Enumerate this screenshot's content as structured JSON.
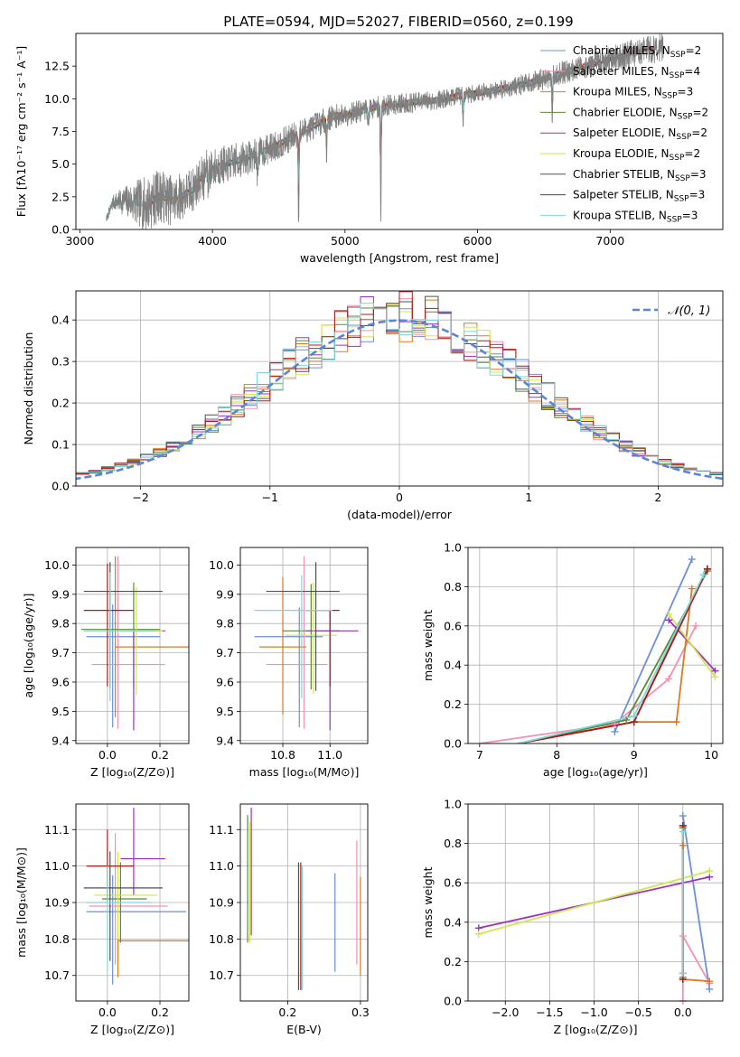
{
  "figure": {
    "title": "PLATE=0594, MJD=52027, FIBERID=0560, z=0.199"
  },
  "models": [
    {
      "name": "Chabrier MILES",
      "nssp": "2",
      "color": "#6c8fdb"
    },
    {
      "name": "Salpeter MILES",
      "nssp": "4",
      "color": "#f291b0"
    },
    {
      "name": "Kroupa MILES",
      "nssp": "3",
      "color": "#e0781e"
    },
    {
      "name": "Chabrier ELODIE",
      "nssp": "2",
      "color": "#5a8a3a"
    },
    {
      "name": "Salpeter ELODIE",
      "nssp": "2",
      "color": "#9b30c0"
    },
    {
      "name": "Kroupa ELODIE",
      "nssp": "2",
      "color": "#cfe84a"
    },
    {
      "name": "Chabrier STELIB",
      "nssp": "3",
      "color": "#505050"
    },
    {
      "name": "Salpeter STELIB",
      "nssp": "3",
      "color": "#b01818"
    },
    {
      "name": "Kroupa STELIB",
      "nssp": "3",
      "color": "#7fd8d8"
    }
  ],
  "chart_data": [
    {
      "id": "spectrum",
      "type": "line",
      "xlabel": "wavelength [Angstrom, rest frame]",
      "ylabel": "Flux [fλ10⁻¹⁷ erg cm⁻² s⁻¹ A⁻¹]",
      "xlim": [
        2970,
        7850
      ],
      "ylim": [
        0,
        15
      ],
      "xticks": [
        3000,
        4000,
        5000,
        6000,
        7000
      ],
      "yticks": [
        0.0,
        2.5,
        5.0,
        7.5,
        10.0,
        12.5
      ],
      "data_color": "#808080",
      "data_range": [
        3200,
        7400
      ],
      "data_continuum": [
        [
          3200,
          0.8
        ],
        [
          3250,
          2.1
        ],
        [
          3350,
          2.2
        ],
        [
          3500,
          1.9
        ],
        [
          3600,
          2.6
        ],
        [
          3700,
          2.2
        ],
        [
          3850,
          3.0
        ],
        [
          3950,
          4.5
        ],
        [
          4100,
          5.0
        ],
        [
          4300,
          5.6
        ],
        [
          4500,
          6.5
        ],
        [
          4700,
          7.6
        ],
        [
          4900,
          8.6
        ],
        [
          5100,
          9.0
        ],
        [
          5300,
          9.5
        ],
        [
          5500,
          9.7
        ],
        [
          5700,
          9.9
        ],
        [
          5900,
          10.3
        ],
        [
          6100,
          10.6
        ],
        [
          6300,
          11.0
        ],
        [
          6500,
          11.5
        ],
        [
          6700,
          12.2
        ],
        [
          6900,
          12.7
        ],
        [
          7100,
          13.3
        ],
        [
          7300,
          13.8
        ],
        [
          7400,
          14.0
        ]
      ],
      "data_dips": [
        [
          3934,
          1.2
        ],
        [
          3968,
          1.5
        ],
        [
          4102,
          1.0
        ],
        [
          4340,
          2.0
        ],
        [
          4650,
          7.0
        ],
        [
          4861,
          3.0
        ],
        [
          5175,
          1.6
        ],
        [
          5270,
          9.0
        ],
        [
          5890,
          2.2
        ],
        [
          6563,
          4.0
        ]
      ],
      "data_noise": [
        [
          3200,
          0.25
        ],
        [
          3500,
          2.2
        ],
        [
          3950,
          1.6
        ],
        [
          4400,
          1.2
        ],
        [
          5000,
          0.9
        ],
        [
          6000,
          0.7
        ],
        [
          7000,
          1.0
        ],
        [
          7400,
          1.2
        ]
      ],
      "model_ranges": [
        [
          3200,
          6780
        ],
        [
          3520,
          7330
        ],
        [
          3540,
          6780
        ],
        [
          3540,
          6780
        ],
        [
          3540,
          6780
        ],
        [
          3540,
          6780
        ],
        [
          3540,
          7330
        ],
        [
          3540,
          7330
        ],
        [
          3200,
          6780
        ]
      ],
      "legend": "top-right"
    },
    {
      "id": "residual-hist",
      "type": "histogram",
      "xlabel": "(data-model)/error",
      "ylabel": "Normed distribution",
      "xlim": [
        -2.5,
        2.5
      ],
      "ylim": [
        0,
        0.47
      ],
      "xticks": [
        -2,
        -1,
        0,
        1,
        2
      ],
      "yticks": [
        0.0,
        0.1,
        0.2,
        0.3,
        0.4
      ],
      "grid": true,
      "bin_width": 0.1,
      "gaussian_label": "𝒩(0, 1)",
      "gaussian_color": "#5b86d6",
      "legend": "top-right"
    },
    {
      "id": "age-vs-Z",
      "type": "errorbar",
      "xlabel": "Z [log₁₀(Z/Z⊙)]",
      "ylabel": "age  [log₁₀(age/yr)]",
      "xlim": [
        -0.12,
        0.31
      ],
      "ylim": [
        9.39,
        10.06
      ],
      "xticks": [
        0.0,
        0.2
      ],
      "yticks": [
        9.4,
        9.5,
        9.6,
        9.7,
        9.8,
        9.9,
        10.0
      ],
      "grid": true,
      "points": [
        {
          "x": 0.02,
          "xerr": [
            0.1,
            0.18
          ],
          "y": 9.755,
          "yerr": [
            0.31,
            0.11
          ]
        },
        {
          "x": 0.04,
          "xerr": [
            0.1,
            0.18
          ],
          "y": 9.66,
          "yerr": [
            0.22,
            0.37
          ]
        },
        {
          "x": 0.03,
          "xerr": [
            0.0,
            0.3
          ],
          "y": 9.72,
          "yerr": [
            0.24,
            0.31
          ]
        },
        {
          "x": 0.1,
          "xerr": [
            0.2,
            0.1
          ],
          "y": 9.78,
          "yerr": [
            0.2,
            0.16
          ]
        },
        {
          "x": 0.1,
          "xerr": [
            0.0,
            0.12
          ],
          "y": 9.775,
          "yerr": [
            0.34,
            0.0
          ]
        },
        {
          "x": 0.11,
          "xerr": [
            0.1,
            0.1
          ],
          "y": 9.775,
          "yerr": [
            0.22,
            0.15
          ]
        },
        {
          "x": 0.01,
          "xerr": [
            0.1,
            0.2
          ],
          "y": 9.91,
          "yerr": [
            0.33,
            0.1
          ]
        },
        {
          "x": 0.0,
          "xerr": [
            0.09,
            0.1
          ],
          "y": 9.845,
          "yerr": [
            0.26,
            0.16
          ]
        },
        {
          "x": 0.01,
          "xerr": [
            0.1,
            0.17
          ],
          "y": 9.775,
          "yerr": [
            0.24,
            0.2
          ]
        }
      ]
    },
    {
      "id": "age-vs-mass",
      "type": "errorbar",
      "xlabel": "mass [log₁₀(M/M⊙)]",
      "ylabel": "",
      "xlim": [
        10.62,
        11.16
      ],
      "ylim": [
        9.39,
        10.06
      ],
      "xticks": [
        10.8,
        11.0
      ],
      "yticks": [
        9.4,
        9.5,
        9.6,
        9.7,
        9.8,
        9.9,
        10.0
      ],
      "grid": true,
      "points": [
        {
          "x": 10.87,
          "xerr": [
            0.19,
            0.1
          ],
          "y": 9.755,
          "yerr": [
            0.31,
            0.1
          ]
        },
        {
          "x": 10.89,
          "xerr": [
            0.16,
            0.1
          ],
          "y": 9.66,
          "yerr": [
            0.22,
            0.37
          ]
        },
        {
          "x": 10.8,
          "xerr": [
            0.1,
            0.1
          ],
          "y": 9.72,
          "yerr": [
            0.23,
            0.24
          ]
        },
        {
          "x": 10.92,
          "xerr": [
            0.12,
            0.12
          ],
          "y": 9.775,
          "yerr": [
            0.2,
            0.16
          ]
        },
        {
          "x": 11.0,
          "xerr": [
            0.1,
            0.12
          ],
          "y": 9.775,
          "yerr": [
            0.34,
            0.07
          ]
        },
        {
          "x": 10.93,
          "xerr": [
            0.12,
            0.1
          ],
          "y": 9.76,
          "yerr": [
            0.2,
            0.18
          ]
        },
        {
          "x": 10.94,
          "xerr": [
            0.21,
            0.1
          ],
          "y": 9.91,
          "yerr": [
            0.34,
            0.1
          ]
        },
        {
          "x": 11.0,
          "xerr": [
            0.1,
            0.04
          ],
          "y": 9.845,
          "yerr": [
            0.26,
            0.0
          ]
        },
        {
          "x": 10.88,
          "xerr": [
            0.2,
            0.13
          ],
          "y": 9.845,
          "yerr": [
            0.3,
            0.12
          ]
        }
      ]
    },
    {
      "id": "weight-vs-age",
      "type": "line",
      "xlabel": "age  [log₁₀(age/yr)]",
      "ylabel": "mass weight",
      "xlim": [
        6.85,
        10.15
      ],
      "ylim": [
        0,
        1
      ],
      "xticks": [
        7,
        8,
        9,
        10
      ],
      "yticks": [
        0.0,
        0.2,
        0.4,
        0.6,
        0.8,
        1.0
      ],
      "grid": true,
      "series": [
        {
          "x": [
            8.75,
            9.75
          ],
          "y": [
            0.06,
            0.94
          ],
          "marked": [
            true,
            true
          ]
        },
        {
          "x": [
            7.0,
            8.75,
            9.45,
            9.8
          ],
          "y": [
            0.0,
            0.1,
            0.33,
            0.6
          ],
          "marked": [
            false,
            true,
            true,
            true
          ]
        },
        {
          "x": [
            7.5,
            9.0,
            9.55,
            9.75
          ],
          "y": [
            0.0,
            0.11,
            0.11,
            0.79
          ],
          "marked": [
            false,
            true,
            true,
            true
          ]
        },
        {
          "x": [
            7.5,
            8.9,
            9.95
          ],
          "y": [
            0.0,
            0.12,
            0.88
          ],
          "marked": [
            false,
            true,
            true
          ]
        },
        {
          "x": [
            9.45,
            10.05
          ],
          "y": [
            0.63,
            0.37
          ],
          "marked": [
            true,
            true
          ]
        },
        {
          "x": [
            9.45,
            10.05
          ],
          "y": [
            0.66,
            0.34
          ],
          "marked": [
            true,
            true
          ]
        },
        {
          "x": [
            7.5,
            9.0,
            9.95
          ],
          "y": [
            0.0,
            0.11,
            0.89
          ],
          "marked": [
            false,
            true,
            true
          ]
        },
        {
          "x": [
            7.5,
            9.0,
            9.95
          ],
          "y": [
            0.0,
            0.11,
            0.89
          ],
          "marked": [
            false,
            true,
            true
          ]
        },
        {
          "x": [
            7.5,
            9.0,
            9.9
          ],
          "y": [
            0.0,
            0.14,
            0.86
          ],
          "marked": [
            false,
            true,
            true
          ]
        }
      ]
    },
    {
      "id": "mass-vs-Z",
      "type": "errorbar",
      "xlabel": "Z [log₁₀(Z/Z⊙)]",
      "ylabel": "mass [log₁₀(M/M⊙)]",
      "xlim": [
        -0.12,
        0.31
      ],
      "ylim": [
        10.63,
        11.17
      ],
      "xticks": [
        0.0,
        0.2
      ],
      "yticks": [
        10.7,
        10.8,
        10.9,
        11.0,
        11.1
      ],
      "grid": true,
      "points": [
        {
          "x": 0.02,
          "xerr": [
            0.1,
            0.28
          ],
          "y": 10.875,
          "yerr": [
            0.2,
            0.1
          ]
        },
        {
          "x": 0.03,
          "xerr": [
            0.1,
            0.2
          ],
          "y": 10.89,
          "yerr": [
            0.16,
            0.2
          ]
        },
        {
          "x": 0.04,
          "xerr": [
            0.0,
            0.27
          ],
          "y": 10.795,
          "yerr": [
            0.1,
            0.17
          ]
        },
        {
          "x": 0.05,
          "xerr": [
            0.07,
            0.1
          ],
          "y": 10.91,
          "yerr": [
            0.12,
            0.1
          ]
        },
        {
          "x": 0.1,
          "xerr": [
            0.05,
            0.12
          ],
          "y": 11.02,
          "yerr": [
            0.1,
            0.14
          ]
        },
        {
          "x": 0.04,
          "xerr": [
            0.09,
            0.15
          ],
          "y": 10.92,
          "yerr": [
            0.12,
            0.12
          ]
        },
        {
          "x": 0.01,
          "xerr": [
            0.1,
            0.2
          ],
          "y": 10.94,
          "yerr": [
            0.2,
            0.1
          ]
        },
        {
          "x": 0.0,
          "xerr": [
            0.08,
            0.1
          ],
          "y": 11.0,
          "yerr": [
            0.1,
            0.1
          ]
        },
        {
          "x": 0.0,
          "xerr": [
            0.08,
            0.17
          ],
          "y": 10.9,
          "yerr": [
            0.19,
            0.1
          ]
        }
      ]
    },
    {
      "id": "mass-vs-EBV",
      "type": "errorbar",
      "xlabel": "E(B-V)",
      "ylabel": "",
      "xlim": [
        0.135,
        0.31
      ],
      "ylim": [
        10.63,
        11.17
      ],
      "xticks": [
        0.2,
        0.3
      ],
      "yticks": [
        10.7,
        10.8,
        10.9,
        11.0,
        11.1
      ],
      "grid": true,
      "points": [
        {
          "x": 0.265,
          "y": 10.84,
          "yerr": [
            0.13,
            0.14
          ]
        },
        {
          "x": 0.295,
          "y": 10.9,
          "yerr": [
            0.17,
            0.17
          ]
        },
        {
          "x": 0.3,
          "y": 10.83,
          "yerr": [
            0.13,
            0.14
          ]
        },
        {
          "x": 0.145,
          "y": 10.98,
          "yerr": [
            0.19,
            0.16
          ]
        },
        {
          "x": 0.15,
          "y": 10.98,
          "yerr": [
            0.17,
            0.18
          ]
        },
        {
          "x": 0.148,
          "y": 10.96,
          "yerr": [
            0.17,
            0.16
          ]
        },
        {
          "x": 0.215,
          "y": 10.84,
          "yerr": [
            0.18,
            0.17
          ]
        },
        {
          "x": 0.218,
          "y": 10.86,
          "yerr": [
            0.2,
            0.15
          ]
        },
        {
          "x": 0.22,
          "y": 10.82,
          "yerr": [
            0.16,
            0.18
          ]
        }
      ]
    },
    {
      "id": "weight-vs-Z",
      "type": "line",
      "xlabel": "Z [log₁₀(Z/Z⊙)]",
      "ylabel": "mass weight",
      "xlim": [
        -2.42,
        0.45
      ],
      "ylim": [
        0,
        1
      ],
      "xticks": [
        -2.0,
        -1.5,
        -1.0,
        -0.5,
        0.0
      ],
      "yticks": [
        0.0,
        0.2,
        0.4,
        0.6,
        0.8,
        1.0
      ],
      "grid": true,
      "series": [
        {
          "x": [
            0.0,
            0.3
          ],
          "y": [
            0.94,
            0.06
          ],
          "marked": [
            true,
            true
          ]
        },
        {
          "x": [
            0.0,
            0.0,
            0.3
          ],
          "y": [
            0.0,
            0.33,
            0.09
          ],
          "marked": [
            true,
            true,
            true
          ]
        },
        {
          "x": [
            0.0,
            0.0,
            0.3
          ],
          "y": [
            0.79,
            0.11,
            0.1
          ],
          "marked": [
            true,
            true,
            true
          ]
        },
        {
          "x": [
            0.0,
            0.0
          ],
          "y": [
            0.88,
            0.12
          ],
          "marked": [
            true,
            true
          ]
        },
        {
          "x": [
            -2.3,
            0.3
          ],
          "y": [
            0.37,
            0.63
          ],
          "marked": [
            true,
            true
          ]
        },
        {
          "x": [
            -2.3,
            0.3
          ],
          "y": [
            0.34,
            0.66
          ],
          "marked": [
            true,
            true
          ]
        },
        {
          "x": [
            0.0,
            0.0
          ],
          "y": [
            0.89,
            0.14
          ],
          "marked": [
            true,
            true
          ]
        },
        {
          "x": [
            0.0,
            0.0
          ],
          "y": [
            0.89,
            0.11
          ],
          "marked": [
            true,
            true
          ]
        },
        {
          "x": [
            0.0,
            0.0
          ],
          "y": [
            0.86,
            0.14
          ],
          "marked": [
            true,
            true
          ]
        }
      ]
    }
  ]
}
